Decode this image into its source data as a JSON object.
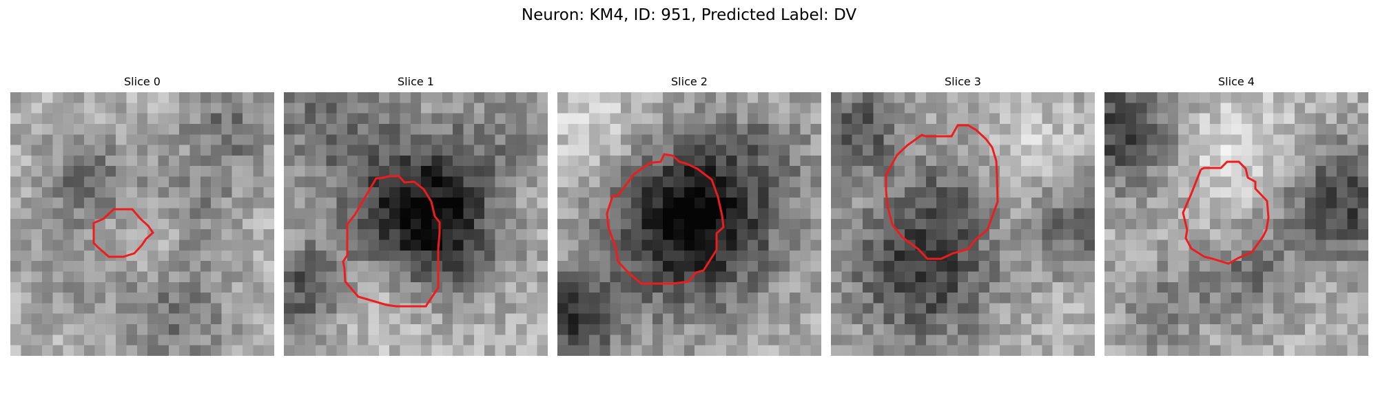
{
  "figure": {
    "title": "Neuron: KM4, ID: 951, Predicted Label: DV"
  },
  "contour_color": "#ee1c1c",
  "slices": [
    {
      "title": "Slice 0"
    },
    {
      "title": "Slice 1"
    },
    {
      "title": "Slice 2"
    },
    {
      "title": "Slice 3"
    },
    {
      "title": "Slice 4"
    }
  ]
}
